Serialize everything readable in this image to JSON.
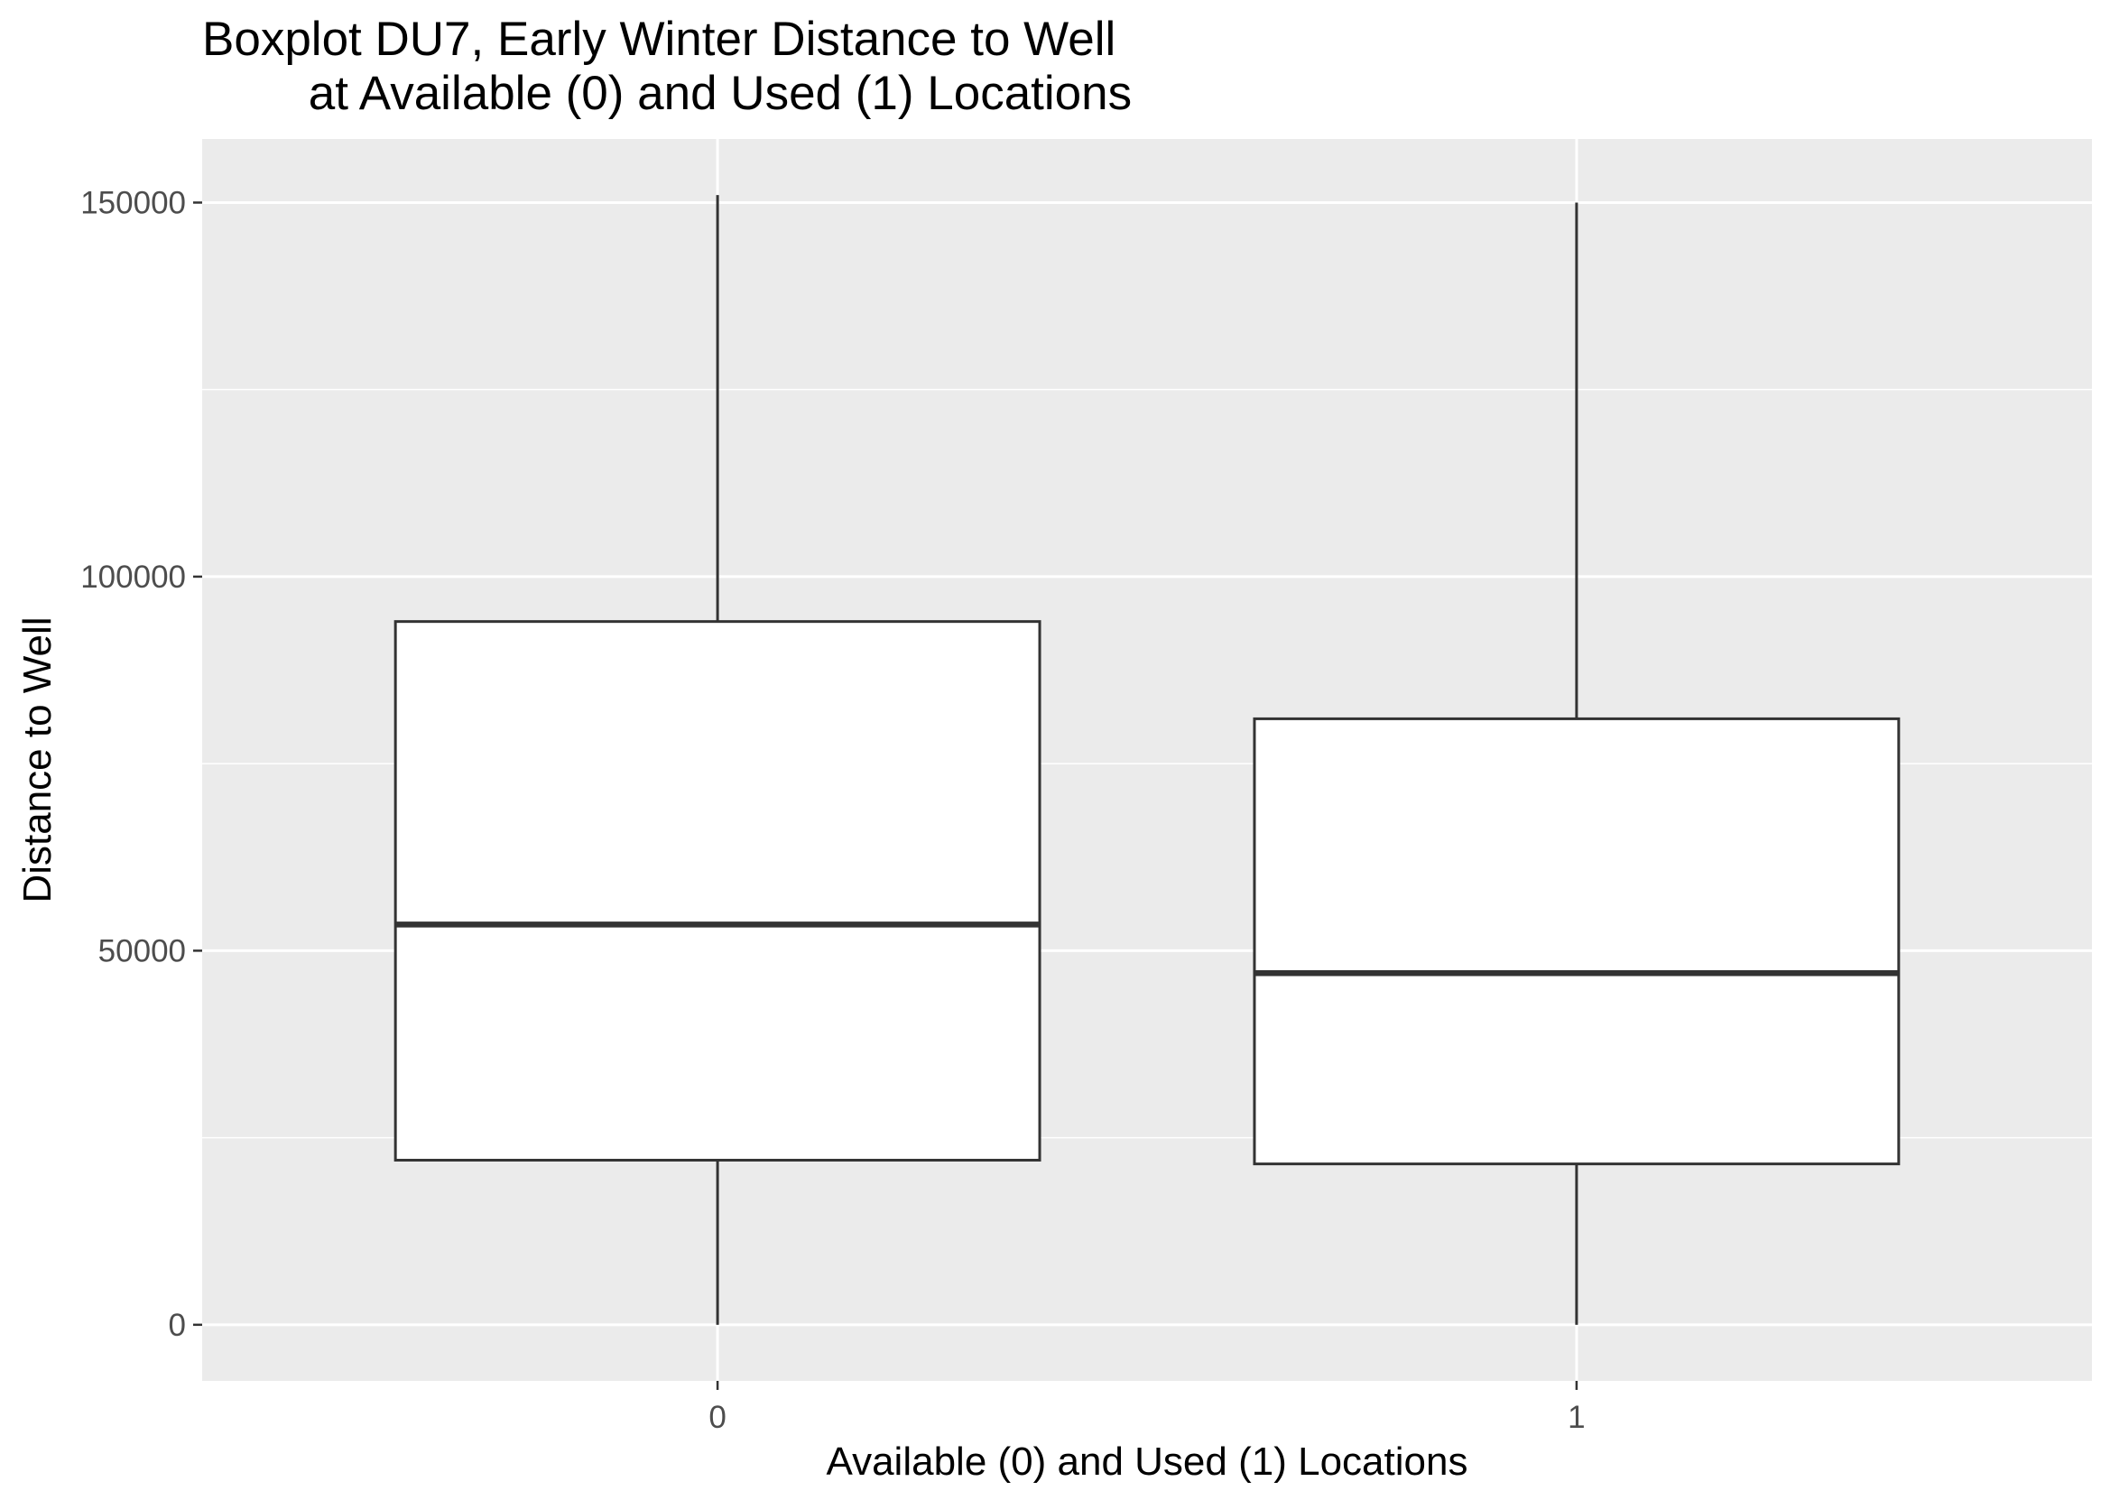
{
  "chart_data": {
    "type": "boxplot",
    "title": "Boxplot DU7, Early Winter Distance to Well\n        at Available (0) and Used (1) Locations",
    "xlabel": "Available (0) and Used (1) Locations",
    "ylabel": "Distance to Well",
    "categories": [
      "0",
      "1"
    ],
    "boxes": [
      {
        "category": "0",
        "min": 0,
        "q1": 22000,
        "median": 53500,
        "q3": 94000,
        "max": 151000
      },
      {
        "category": "1",
        "min": 0,
        "q1": 21500,
        "median": 47000,
        "q3": 81000,
        "max": 150000
      }
    ],
    "y_ticks": [
      0,
      50000,
      100000,
      150000
    ],
    "y_tick_labels": [
      "0",
      "50000",
      "100000",
      "150000"
    ],
    "ylim": [
      -7500,
      158500
    ],
    "grid": true,
    "colors": {
      "panel_background": "#ebebeb",
      "gridline": "#ffffff",
      "box_fill": "#ffffff",
      "box_stroke": "#333333",
      "tick_label": "#4d4d4d"
    }
  }
}
